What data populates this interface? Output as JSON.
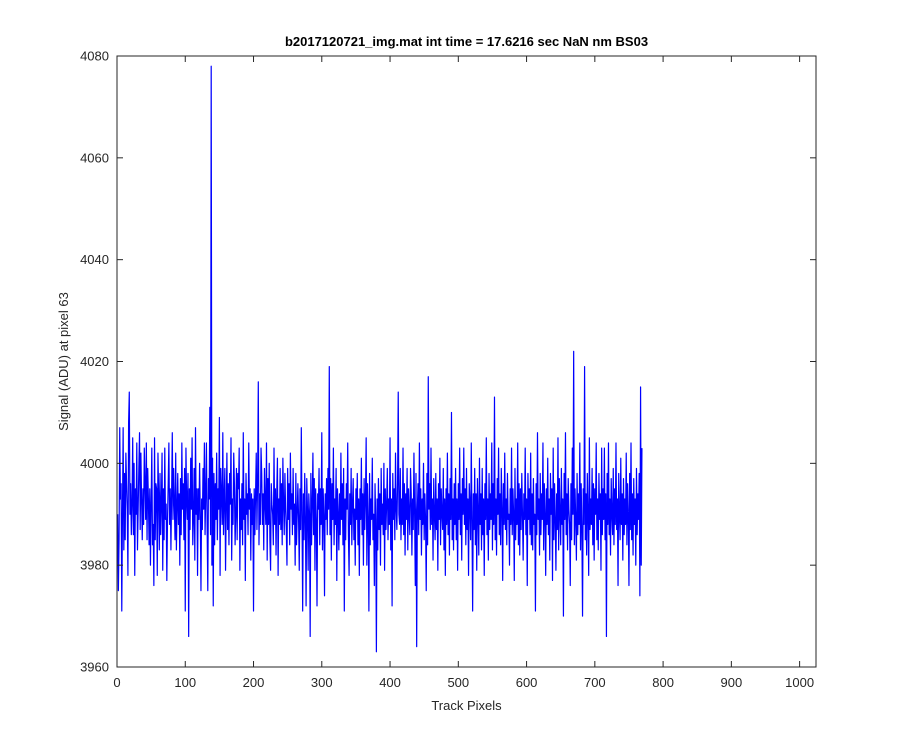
{
  "chart_data": {
    "type": "line",
    "title": "b2017120721_img.mat int time = 17.6216 sec  NaN nm BS03",
    "xlabel": "Track Pixels",
    "ylabel": "Signal (ADU) at pixel 63",
    "xlim": [
      0,
      1024
    ],
    "ylim": [
      3960,
      4080
    ],
    "x_ticks": [
      0,
      100,
      200,
      300,
      400,
      500,
      600,
      700,
      800,
      900,
      1000
    ],
    "y_ticks": [
      3960,
      3980,
      4000,
      4020,
      4040,
      4060,
      4080
    ],
    "grid": false,
    "series": [
      {
        "color": "#0000ff",
        "x_start": 1,
        "x_step": 1,
        "values": [
          3990,
          3975,
          3985,
          4007,
          3993,
          3996,
          3971,
          3990,
          4007,
          3983,
          3998,
          3985,
          4002,
          3996,
          3991,
          3978,
          4008,
          4014,
          3990,
          3996,
          3986,
          3992,
          4005,
          3986,
          4000,
          3978,
          3995,
          3990,
          4004,
          3983,
          3991,
          3999,
          4006,
          3987,
          4002,
          3993,
          3985,
          3995,
          3988,
          4003,
          3996,
          3989,
          4004,
          3985,
          3999,
          3993,
          3984,
          3995,
          3980,
          3992,
          4003,
          3984,
          3988,
          3976,
          4005,
          3985,
          3996,
          3995,
          3978,
          4002,
          3994,
          3983,
          3998,
          3986,
          3992,
          4002,
          3979,
          3995,
          3985,
          4003,
          3989,
          3992,
          3977,
          3989,
          3996,
          4004,
          3988,
          3995,
          3983,
          3994,
          4006,
          3989,
          3999,
          3992,
          3985,
          4002,
          3983,
          3991,
          3998,
          3988,
          3994,
          3980,
          3997,
          3986,
          4004,
          3991,
          3996,
          3985,
          3999,
          3971,
          4003,
          3993,
          3989,
          3998,
          3966,
          3995,
          3987,
          4001,
          3991,
          4005,
          3984,
          3989,
          3999,
          3981,
          4007,
          3990,
          3995,
          3978,
          3995,
          3989,
          4000,
          3990,
          3975,
          3993,
          3987,
          3999,
          3991,
          4004,
          3986,
          3994,
          4004,
          3988,
          3975,
          3997,
          3993,
          4011,
          3986,
          4078,
          3980,
          4001,
          3972,
          3998,
          3984,
          3996,
          3989,
          4002,
          3985,
          3995,
          3991,
          4009,
          3978,
          3999,
          3994,
          3988,
          4006,
          3986,
          3993,
          3999,
          3979,
          3991,
          4002,
          3987,
          3996,
          3984,
          3998,
          3992,
          4005,
          3981,
          3993,
          3988,
          4002,
          3996,
          3984,
          3990,
          3999,
          3985,
          3998,
          3995,
          4003,
          3979,
          3993,
          3987,
          3996,
          3984,
          4006,
          3989,
          3993,
          3977,
          3998,
          3990,
          3994,
          3986,
          4004,
          3991,
          3995,
          3981,
          3994,
          3988,
          3993,
          3971,
          3995,
          3986,
          3994,
          4002,
          3987,
          3997,
          4016,
          3984,
          3994,
          3988,
          4003,
          3998,
          3988,
          3994,
          3983,
          3999,
          3992,
          3988,
          4004,
          3981,
          3997,
          3988,
          4000,
          3985,
          3979,
          3996,
          3992,
          3990,
          3984,
          4003,
          3988,
          3995,
          3982,
          3994,
          4001,
          3978,
          3993,
          3988,
          3999,
          3987,
          3996,
          3984,
          4001,
          3992,
          3986,
          3998,
          3991,
          3987,
          3980,
          3999,
          3989,
          3996,
          3984,
          4002,
          3991,
          3994,
          3986,
          3999,
          3988,
          3992,
          3980,
          3998,
          3984,
          3990,
          3996,
          3989,
          3979,
          3995,
          3987,
          4007,
          3990,
          3971,
          3994,
          3985,
          3998,
          3989,
          3972,
          3997,
          3991,
          3979,
          3994,
          3990,
          3966,
          3998,
          3984,
          3992,
          4002,
          3986,
          3997,
          3979,
          3995,
          3989,
          3972,
          3994,
          3991,
          3999,
          3984,
          3995,
          3988,
          4006,
          3983,
          3995,
          3990,
          3974,
          3994,
          3989,
          3997,
          3986,
          3999,
          3991,
          4019,
          3986,
          3997,
          3981,
          3996,
          3989,
          4003,
          3984,
          3993,
          3988,
          3999,
          3977,
          3995,
          3990,
          3983,
          3994,
          3986,
          4002,
          3989,
          3996,
          3984,
          3999,
          3971,
          3993,
          3985,
          3996,
          3991,
          4004,
          3986,
          3978,
          3994,
          3988,
          3999,
          3984,
          3992,
          3997,
          3985,
          3991,
          3980,
          3995,
          3989,
          3998,
          3984,
          3993,
          3978,
          3995,
          3989,
          4001,
          3986,
          3994,
          3980,
          3997,
          3987,
          3993,
          4005,
          3980,
          3996,
          3989,
          3971,
          3998,
          3984,
          3993,
          3989,
          4001,
          3985,
          3990,
          3976,
          3996,
          3989,
          3963,
          3993,
          3983,
          3997,
          3987,
          3994,
          3980,
          3999,
          3988,
          3992,
          3986,
          4000,
          3979,
          3995,
          3987,
          3992,
          3999,
          3985,
          3993,
          3988,
          4005,
          3983,
          3993,
          3972,
          3998,
          3989,
          3995,
          3985,
          4002,
          3991,
          3987,
          3996,
          4014,
          3990,
          3988,
          3999,
          3985,
          3993,
          3988,
          4003,
          3986,
          3996,
          3982,
          3994,
          3989,
          3999,
          3983,
          3995,
          3990,
          3986,
          3999,
          3994,
          3982,
          3993,
          3987,
          4002,
          3990,
          3976,
          3998,
          3964,
          3991,
          3996,
          3986,
          4004,
          3989,
          3995,
          3982,
          3993,
          3988,
          4000,
          3985,
          3994,
          3989,
          3975,
          3998,
          3984,
          4017,
          3991,
          3996,
          3987,
          4003,
          3988,
          3993,
          3981,
          3997,
          3990,
          3985,
          3998,
          3987,
          3993,
          3979,
          3996,
          3989,
          4001,
          3984,
          3995,
          3990,
          3987,
          3999,
          3983,
          3993,
          3978,
          3995,
          3988,
          4002,
          3986,
          3994,
          3982,
          3997,
          3989,
          4010,
          3985,
          3993,
          3983,
          3996,
          3988,
          3999,
          3985,
          3993,
          3979,
          3996,
          3989,
          4003,
          3986,
          3994,
          3981,
          3997,
          3990,
          4003,
          3988,
          3995,
          3984,
          3999,
          3987,
          3993,
          3978,
          3996,
          3992,
          3985,
          4004,
          3989,
          3971,
          3994,
          3987,
          3999,
          3984,
          3994,
          3979,
          3997,
          3990,
          3982,
          4001,
          3988,
          3994,
          3983,
          3999,
          3986,
          3993,
          3978,
          3996,
          3989,
          4005,
          3986,
          3993,
          3981,
          3998,
          3987,
          3994,
          3989,
          4004,
          3983,
          3996,
          3988,
          4013,
          3985,
          3993,
          3982,
          3997,
          3990,
          4003,
          3986,
          3994,
          3984,
          3999,
          3991,
          3977,
          3996,
          3988,
          4002,
          3987,
          3993,
          3984,
          3998,
          3989,
          3990,
          3980,
          3995,
          3988,
          4003,
          3986,
          3995,
          3990,
          3977,
          3999,
          3985,
          3993,
          3988,
          4004,
          3984,
          3996,
          3982,
          3995,
          3987,
          3998,
          3990,
          3981,
          3994,
          3989,
          4003,
          3986,
          3993,
          3976,
          3998,
          3989,
          3995,
          3986,
          4002,
          3984,
          3994,
          3983,
          3997,
          3988,
          3990,
          3971,
          3996,
          3986,
          4006,
          3989,
          3993,
          3982,
          3998,
          3986,
          3994,
          3989,
          4004,
          3983,
          3996,
          3990,
          3978,
          3995,
          3988,
          4001,
          3986,
          3993,
          3981,
          3998,
          3990,
          3995,
          3977,
          4003,
          3985,
          3996,
          3989,
          3979,
          3994,
          3987,
          4005,
          3983,
          3997,
          3990,
          3984,
          3999,
          3988,
          3993,
          3970,
          3998,
          3989,
          4006,
          3986,
          3994,
          3983,
          3997,
          3991,
          3988,
          3976,
          3996,
          3985,
          4003,
          3990,
          4022,
          3984,
          3995,
          3989,
          3981,
          3998,
          3986,
          3994,
          3988,
          4004,
          3983,
          3996,
          3987,
          3970,
          3995,
          3988,
          4019,
          3985,
          3994,
          3982,
          3998,
          3990,
          3978,
          4005,
          3987,
          3993,
          3988,
          3999,
          3984,
          3996,
          3981,
          3995,
          3990,
          4004,
          3985,
          3993,
          3983,
          3998,
          3989,
          3994,
          3979,
          4003,
          3986,
          3995,
          3989,
          4003,
          3985,
          3994,
          3966,
          3998,
          3988,
          4004,
          3986,
          3993,
          3982,
          3997,
          3990,
          3986,
          3999,
          3984,
          3995,
          3988,
          4004,
          3987,
          3993,
          3976,
          3998,
          3990,
          3985,
          4001,
          3988,
          3994,
          3981,
          3997,
          3986,
          3993,
          3988,
          4002,
          3984,
          3996,
          3990,
          3976,
          3998,
          3987,
          4004,
          3985,
          3994,
          3982,
          3997,
          3988,
          3993,
          3980,
          3999,
          3986,
          3994,
          3989,
          3998,
          3974,
          4015,
          3980,
          4003
        ]
      }
    ]
  }
}
